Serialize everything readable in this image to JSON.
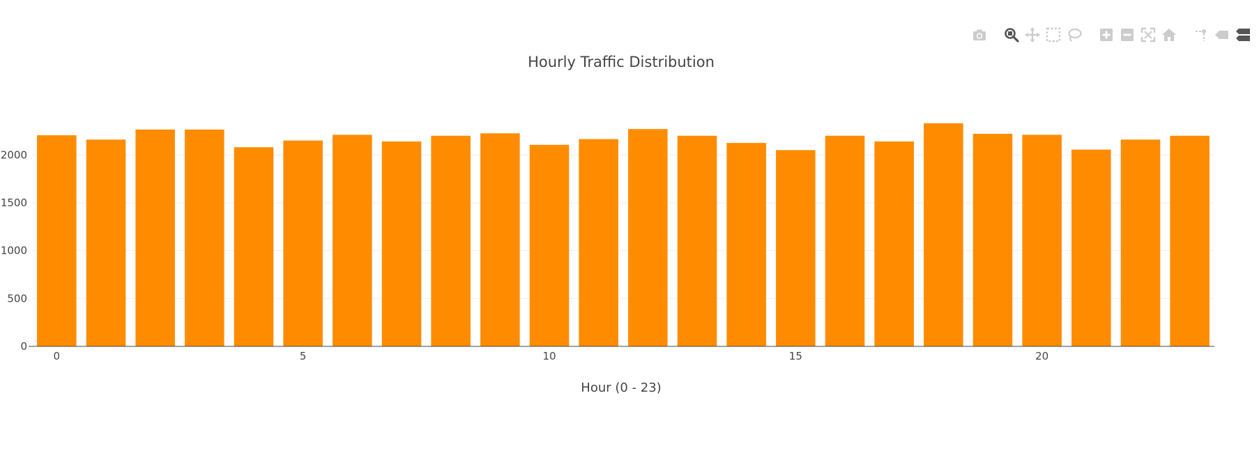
{
  "chart_data": {
    "type": "bar",
    "title": "Hourly Traffic Distribution",
    "xlabel": "Hour (0 - 23)",
    "ylabel": "",
    "x": [
      0,
      1,
      2,
      3,
      4,
      5,
      6,
      7,
      8,
      9,
      10,
      11,
      12,
      13,
      14,
      15,
      16,
      17,
      18,
      19,
      20,
      21,
      22,
      23
    ],
    "values": [
      2205,
      2160,
      2265,
      2265,
      2080,
      2150,
      2210,
      2140,
      2200,
      2225,
      2105,
      2165,
      2270,
      2200,
      2125,
      2050,
      2200,
      2140,
      2330,
      2220,
      2210,
      2055,
      2160,
      2200
    ],
    "xticks": [
      0,
      5,
      10,
      15,
      20
    ],
    "xtick_labels": [
      "0",
      "5",
      "10",
      "15",
      "20"
    ],
    "yticks": [
      0,
      500,
      1000,
      1500,
      2000
    ],
    "ytick_labels": [
      "0",
      "500",
      "1000",
      "1500",
      "2000"
    ],
    "ylim": [
      0,
      2526
    ],
    "xlim": [
      -0.5,
      23.5
    ],
    "bar_color": "#ff8c00",
    "grid": true,
    "grid_color": "#eeeeee",
    "axis_color": "#444444"
  },
  "modebar": {
    "icons": [
      "camera-icon",
      "zoom-icon",
      "pan-icon",
      "box-select-icon",
      "lasso-select-icon",
      "zoom-in-icon",
      "zoom-out-icon",
      "autoscale-icon",
      "reset-axes-icon",
      "spike-lines-icon",
      "hover-closest-icon",
      "hover-compare-icon"
    ],
    "icon_color": "#cccccc",
    "active_color": "#555555"
  }
}
